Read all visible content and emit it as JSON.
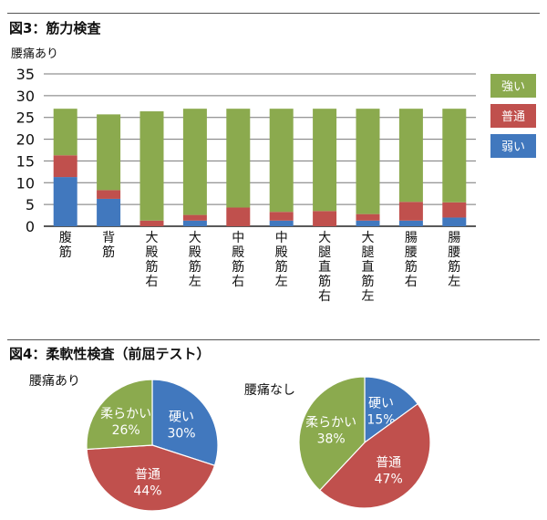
{
  "fig3": {
    "title": "図3：筋力検査",
    "chart_data": {
      "type": "bar",
      "stacked": true,
      "ylabel": "腰痛あり",
      "ylim": [
        0,
        35
      ],
      "yticks": [
        0,
        5,
        10,
        15,
        20,
        25,
        30,
        35
      ],
      "grid": true,
      "legend_position": "right",
      "categories": [
        "腹筋",
        "背筋",
        "大殿筋右",
        "大殿筋左",
        "中殿筋右",
        "中殿筋左",
        "大腿直筋右",
        "大腿直筋左",
        "腸腰筋右",
        "腸腰筋左"
      ],
      "series": [
        {
          "name": "弱い",
          "color": "#4178BE",
          "values": [
            11.3,
            6.3,
            0,
            1.3,
            0,
            1.3,
            0,
            1.3,
            1.3,
            2.0
          ]
        },
        {
          "name": "普通",
          "color": "#C0504D",
          "values": [
            5.0,
            2.0,
            1.3,
            1.3,
            4.3,
            2.0,
            3.5,
            1.5,
            4.3,
            3.5
          ]
        },
        {
          "name": "強い",
          "color": "#8BAA4E",
          "values": [
            10.7,
            17.4,
            25.1,
            24.4,
            22.7,
            23.7,
            23.5,
            24.2,
            21.4,
            21.5
          ]
        }
      ],
      "legend_order": [
        "強い",
        "普通",
        "弱い"
      ]
    }
  },
  "fig4": {
    "title": "図4：柔軟性検査（前屈テスト）",
    "chart_data": [
      {
        "type": "pie",
        "title": "腰痛あり",
        "slices": [
          {
            "label": "硬い",
            "value": 30,
            "display": "30%",
            "color": "#4178BE"
          },
          {
            "label": "普通",
            "value": 44,
            "display": "44%",
            "color": "#C0504D"
          },
          {
            "label": "柔らかい",
            "value": 26,
            "display": "26%",
            "color": "#8BAA4E"
          }
        ]
      },
      {
        "type": "pie",
        "title": "腰痛なし",
        "slices": [
          {
            "label": "硬い",
            "value": 15,
            "display": "15%",
            "color": "#4178BE"
          },
          {
            "label": "普通",
            "value": 47,
            "display": "47%",
            "color": "#C0504D"
          },
          {
            "label": "柔らかい",
            "value": 38,
            "display": "38%",
            "color": "#8BAA4E"
          }
        ]
      }
    ]
  }
}
